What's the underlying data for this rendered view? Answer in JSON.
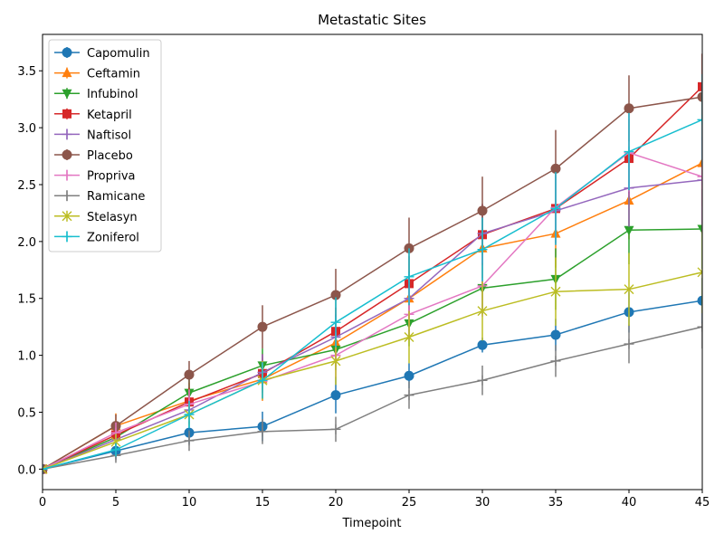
{
  "chart_data": {
    "type": "line",
    "title": "Metastatic Sites",
    "xlabel": "Timepoint",
    "ylabel": "",
    "xlim": [
      0,
      45
    ],
    "ylim": [
      -0.18,
      3.82
    ],
    "x_ticks": [
      0,
      5,
      10,
      15,
      20,
      25,
      30,
      35,
      40,
      45
    ],
    "y_ticks": [
      "0.0",
      "0.5",
      "1.0",
      "1.5",
      "2.0",
      "2.5",
      "3.0",
      "3.5"
    ],
    "grid": false,
    "legend_position": "top-left",
    "x": [
      0,
      5,
      10,
      15,
      20,
      25,
      30,
      35,
      40,
      45
    ],
    "series": [
      {
        "name": "Capomulin",
        "color": "#1f77b4",
        "marker": "circle",
        "values": [
          0,
          0.16,
          0.32,
          0.375,
          0.65,
          0.82,
          1.09,
          1.18,
          1.38,
          1.48
        ],
        "errors": [
          0,
          0.075,
          0.1,
          0.13,
          0.16,
          0.11,
          0.065,
          0.14,
          0.18,
          0.2
        ]
      },
      {
        "name": "Ceftamin",
        "color": "#ff7f0e",
        "marker": "triangle-up",
        "values": [
          0,
          0.38,
          0.6,
          0.79,
          1.11,
          1.5,
          1.94,
          2.07,
          2.36,
          2.69
        ],
        "errors": [
          0,
          0.11,
          0.16,
          0.19,
          0.21,
          0.24,
          0.26,
          0.3,
          0.34,
          0.38
        ]
      },
      {
        "name": "Infubinol",
        "color": "#2ca02c",
        "marker": "triangle-down",
        "values": [
          0,
          0.28,
          0.67,
          0.91,
          1.05,
          1.28,
          1.59,
          1.67,
          2.1,
          2.11
        ],
        "errors": [
          0,
          0.08,
          0.12,
          0.15,
          0.18,
          0.2,
          0.23,
          0.27,
          0.3,
          0.35
        ]
      },
      {
        "name": "Ketapril",
        "color": "#d62728",
        "marker": "square",
        "values": [
          0,
          0.3,
          0.59,
          0.84,
          1.21,
          1.63,
          2.06,
          2.29,
          2.73,
          3.36
        ],
        "errors": [
          0,
          0.09,
          0.13,
          0.17,
          0.21,
          0.24,
          0.27,
          0.3,
          0.34,
          0.29
        ]
      },
      {
        "name": "Naftisol",
        "color": "#9467bd",
        "marker": "plus",
        "values": [
          0,
          0.26,
          0.52,
          0.85,
          1.16,
          1.5,
          2.07,
          2.27,
          2.47,
          2.54
        ],
        "errors": [
          0,
          0.08,
          0.12,
          0.16,
          0.2,
          0.23,
          0.26,
          0.3,
          0.34,
          0.38
        ]
      },
      {
        "name": "Placebo",
        "color": "#8c564b",
        "marker": "circle",
        "values": [
          0,
          0.38,
          0.83,
          1.25,
          1.53,
          1.94,
          2.27,
          2.64,
          3.17,
          3.27
        ],
        "errors": [
          0,
          0.1,
          0.12,
          0.19,
          0.23,
          0.27,
          0.3,
          0.34,
          0.29,
          0.38
        ]
      },
      {
        "name": "Propriva",
        "color": "#e377c2",
        "marker": "plus",
        "values": [
          0,
          0.32,
          0.57,
          0.77,
          1.0,
          1.36,
          1.61,
          2.3,
          2.78,
          2.57
        ],
        "errors": [
          0,
          0.09,
          0.13,
          0.16,
          0.2,
          0.23,
          0.27,
          0.3,
          0.34,
          0.5
        ]
      },
      {
        "name": "Ramicane",
        "color": "#7f7f7f",
        "marker": "plus",
        "values": [
          0,
          0.12,
          0.25,
          0.33,
          0.35,
          0.65,
          0.78,
          0.95,
          1.1,
          1.25
        ],
        "errors": [
          0,
          0.065,
          0.09,
          0.11,
          0.11,
          0.12,
          0.13,
          0.14,
          0.17,
          0.19
        ]
      },
      {
        "name": "Stelasyn",
        "color": "#bcbd22",
        "marker": "x",
        "values": [
          0,
          0.24,
          0.48,
          0.78,
          0.95,
          1.16,
          1.39,
          1.56,
          1.58,
          1.73
        ],
        "errors": [
          0,
          0.07,
          0.1,
          0.17,
          0.21,
          0.23,
          0.26,
          0.3,
          0.32,
          0.36
        ]
      },
      {
        "name": "Zoniferol",
        "color": "#17becf",
        "marker": "plus",
        "values": [
          0,
          0.17,
          0.48,
          0.78,
          1.29,
          1.69,
          1.93,
          2.29,
          2.79,
          3.07
        ],
        "errors": [
          0,
          0.06,
          0.12,
          0.16,
          0.22,
          0.25,
          0.28,
          0.32,
          0.34,
          0.4
        ]
      }
    ]
  }
}
